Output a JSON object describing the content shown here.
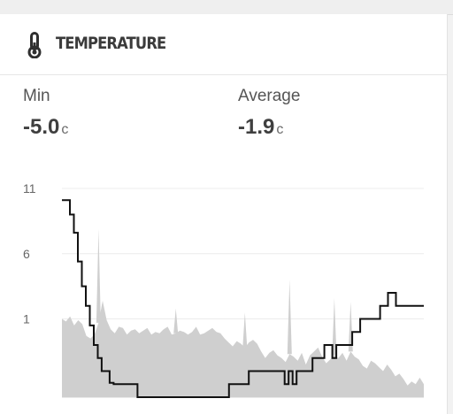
{
  "card": {
    "title": "TEMPERATURE",
    "icon": "thermometer-icon"
  },
  "stats": {
    "min": {
      "label": "Min",
      "value": "-5.0",
      "unit": "c"
    },
    "average": {
      "label": "Average",
      "value": "-1.9",
      "unit": "c"
    }
  },
  "colors": {
    "area": "#cfcfcf",
    "line": "#111111",
    "grid": "#ececec"
  },
  "chart_data": {
    "type": "area",
    "title": "",
    "xlabel": "",
    "ylabel": "",
    "ylim": [
      -5,
      11
    ],
    "yticks": [
      {
        "value": 11,
        "label": "11"
      },
      {
        "value": 6,
        "label": "6"
      },
      {
        "value": 1,
        "label": "1"
      }
    ],
    "grid": true,
    "legend": "none",
    "series": [
      {
        "type": "area",
        "values": [
          1.0,
          0.8,
          1.2,
          0.5,
          0.9,
          0.6,
          -0.3,
          -0.5,
          -0.2,
          0.7,
          2.4,
          0.9,
          0.2,
          -0.1,
          0.4,
          0.3,
          -0.2,
          0.1,
          0.2,
          -0.1,
          0.1,
          0.3,
          -0.2,
          0.0,
          -0.1,
          0.2,
          0.4,
          -0.2,
          -0.1,
          0.1,
          0.0,
          -0.2,
          0.0,
          0.4,
          -0.2,
          -0.1,
          0.1,
          0.3,
          0.0,
          -0.1,
          -0.5,
          -0.8,
          -1.1,
          -0.7,
          -0.9,
          -1.2,
          -0.8,
          -0.6,
          -0.9,
          -1.5,
          -2.0,
          -1.6,
          -1.4,
          -1.8,
          -2.0,
          -2.3,
          -1.7,
          -1.9,
          -2.2,
          -1.6,
          -2.5,
          -1.8,
          -1.5,
          -1.2,
          -1.9,
          -2.4,
          -2.1,
          -1.8,
          -2.0,
          -1.6,
          -2.2,
          -1.5,
          -1.9,
          -2.1,
          -2.6,
          -2.8,
          -2.2,
          -2.4,
          -2.7,
          -3.0,
          -2.5,
          -2.9,
          -3.4,
          -3.2,
          -3.6,
          -4.1,
          -3.8,
          -4.0,
          -3.5,
          -4.0
        ],
        "spikes": [
          {
            "index": 9,
            "value": 7.9
          },
          {
            "index": 56,
            "value": 4.0
          },
          {
            "index": 67,
            "value": 2.6
          },
          {
            "index": 71,
            "value": 2.3
          },
          {
            "index": 28,
            "value": 1.8
          },
          {
            "index": 45,
            "value": 1.5
          }
        ]
      },
      {
        "type": "step",
        "values": [
          10.1,
          10.1,
          9.0,
          7.6,
          5.4,
          3.5,
          2.0,
          0.5,
          -1.0,
          -2.0,
          -3.0,
          -3.0,
          -3.9,
          -4.0,
          -4.0,
          -4.0,
          -4.0,
          -4.0,
          -4.0,
          -5.0,
          -5.0,
          -5.0,
          -5.0,
          -5.0,
          -5.0,
          -5.0,
          -5.0,
          -5.0,
          -5.0,
          -5.0,
          -5.0,
          -5.0,
          -5.0,
          -5.0,
          -5.0,
          -5.0,
          -5.0,
          -5.0,
          -5.0,
          -5.0,
          -5.0,
          -5.0,
          -4.0,
          -4.0,
          -4.0,
          -4.0,
          -4.0,
          -3.0,
          -3.0,
          -3.0,
          -3.0,
          -3.0,
          -3.0,
          -3.0,
          -3.0,
          -3.0,
          -4.0,
          -3.0,
          -4.0,
          -3.0,
          -3.0,
          -3.0,
          -3.0,
          -2.0,
          -2.0,
          -2.0,
          -1.0,
          -1.0,
          -2.0,
          -1.0,
          -1.0,
          -1.0,
          -1.0,
          0.0,
          0.0,
          1.0,
          1.0,
          1.0,
          1.0,
          1.0,
          2.0,
          2.0,
          3.0,
          3.0,
          2.0,
          2.0,
          2.0,
          2.0,
          2.0,
          2.0,
          2.0,
          2.0
        ]
      }
    ]
  }
}
